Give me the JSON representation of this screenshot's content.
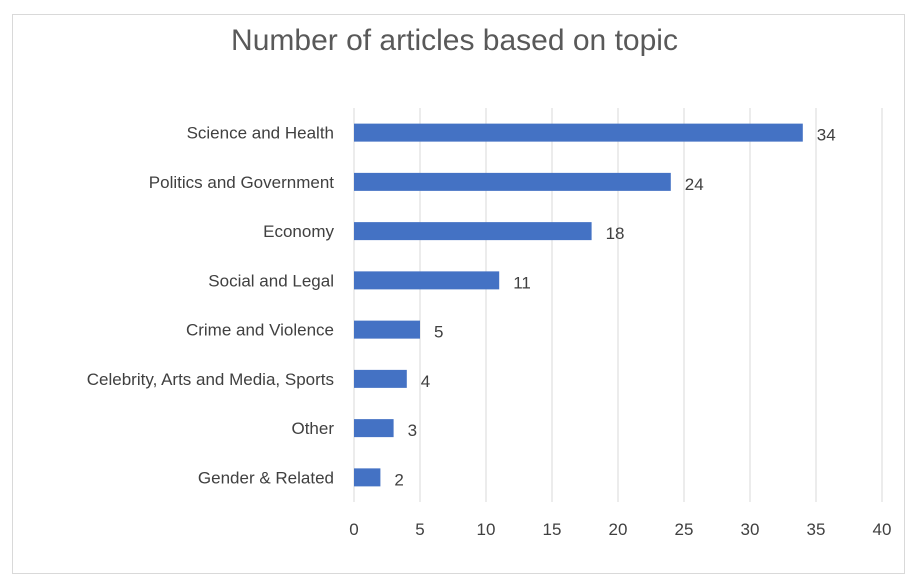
{
  "chart_data": {
    "type": "bar",
    "orientation": "horizontal",
    "title": "Number of articles based on topic",
    "categories": [
      "Science and Health",
      "Politics and Government",
      "Economy",
      "Social and Legal",
      "Crime and Violence",
      "Celebrity, Arts and Media, Sports",
      "Other",
      "Gender & Related"
    ],
    "values": [
      34,
      24,
      18,
      11,
      5,
      4,
      3,
      2
    ],
    "xlim": [
      0,
      40
    ],
    "xticks": [
      0,
      5,
      10,
      15,
      20,
      25,
      30,
      35,
      40
    ],
    "grid": "vertical",
    "legend": "none",
    "bar_color": "#4472c4",
    "data_labels": true
  }
}
